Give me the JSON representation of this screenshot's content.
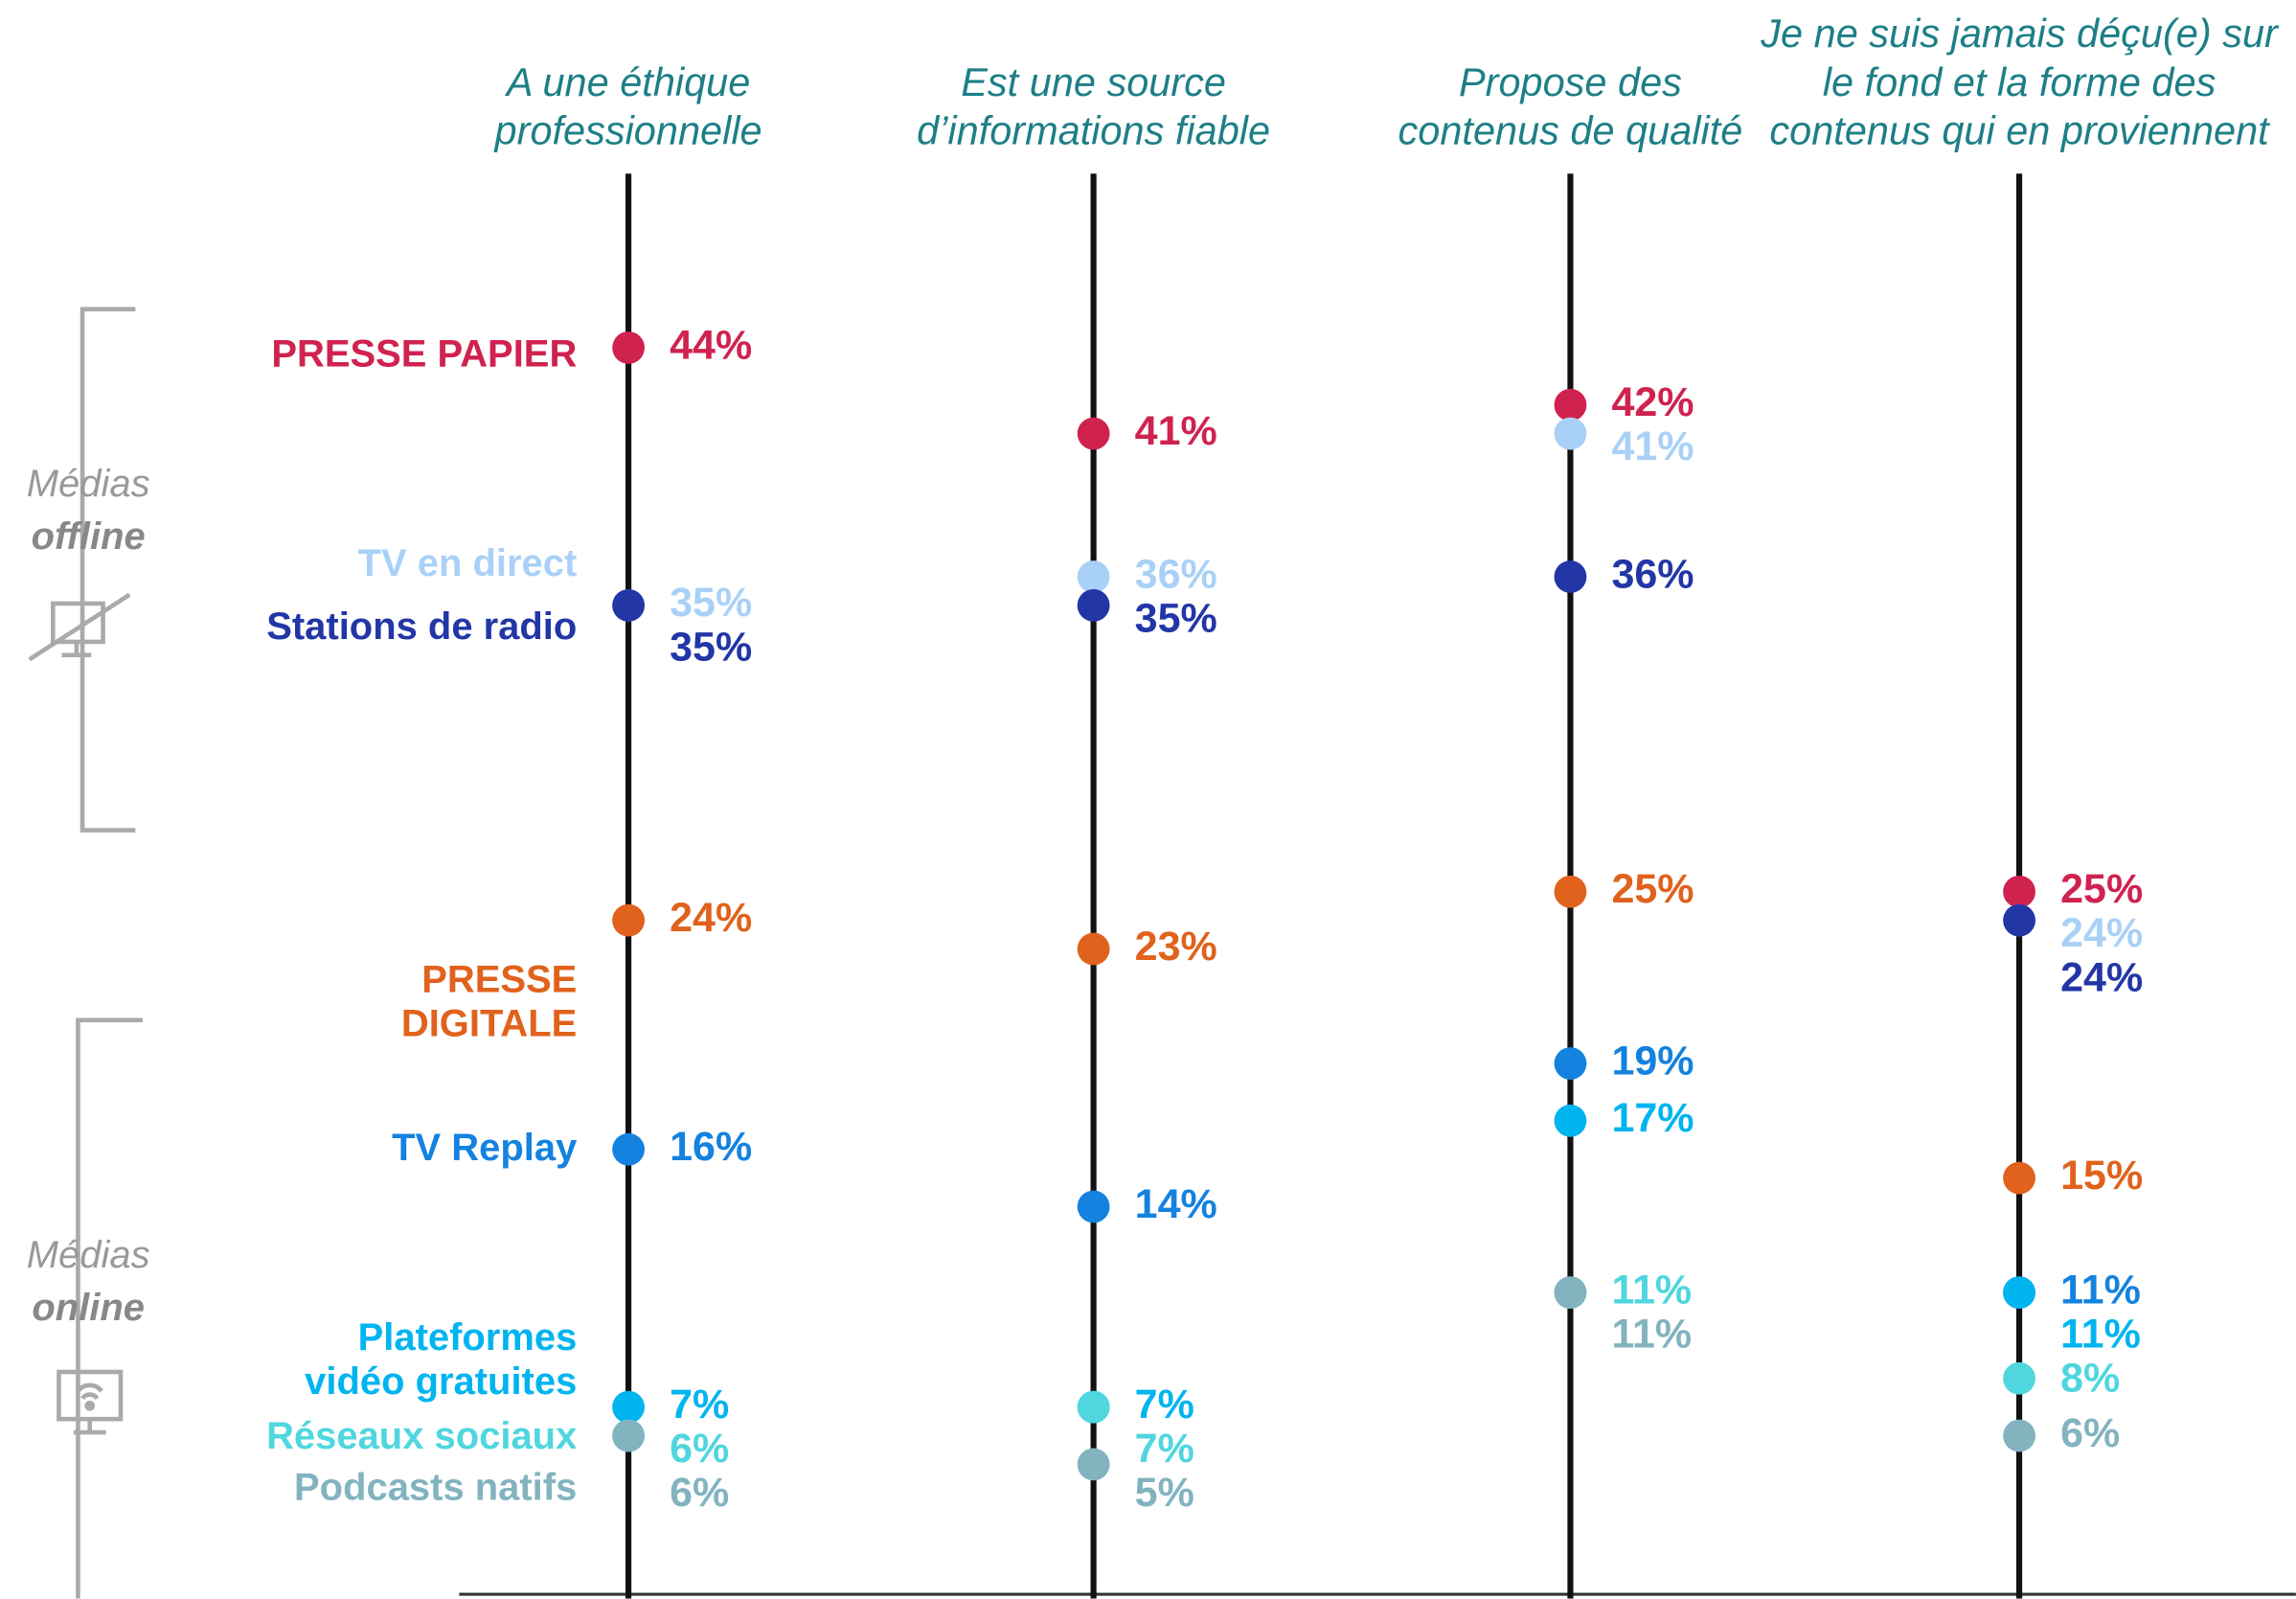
{
  "chart_data": {
    "type": "dot",
    "categories": [
      "A une éthique\nprofessionnelle",
      "Est une source\nd’informations fiable",
      "Propose des\ncontenus de qualité",
      "Je ne suis jamais déçu(e) sur\nle fond et la forme des\ncontenus qui en proviennent"
    ],
    "series": [
      {
        "name": "PRESSE PAPIER",
        "color": "#d0224f",
        "values": [
          44,
          41,
          42,
          25
        ],
        "value_labels": [
          "44%",
          "41%",
          "42%",
          "25%"
        ]
      },
      {
        "name": "TV en direct",
        "color": "#a9d1f7",
        "values": [
          35,
          36,
          41,
          24
        ],
        "value_labels": [
          "35%",
          "36%",
          "41%",
          "24%"
        ]
      },
      {
        "name": "Stations de radio",
        "color": "#2236a6",
        "values": [
          35,
          35,
          36,
          24
        ],
        "value_labels": [
          "35%",
          "35%",
          "36%",
          "24%"
        ]
      },
      {
        "name": "PRESSE\nDIGITALE",
        "color": "#e0621c",
        "values": [
          24,
          23,
          25,
          15
        ],
        "value_labels": [
          "24%",
          "23%",
          "25%",
          "15%"
        ]
      },
      {
        "name": "TV Replay",
        "color": "#1482df",
        "values": [
          16,
          14,
          19,
          11
        ],
        "value_labels": [
          "16%",
          "14%",
          "19%",
          "11%"
        ]
      },
      {
        "name": "Plateformes\nvidéo gratuites",
        "color": "#00b4f0",
        "values": [
          7,
          7,
          17,
          11
        ],
        "value_labels": [
          "7%",
          "7%",
          "17%",
          "11%"
        ]
      },
      {
        "name": "Réseaux sociaux",
        "color": "#4fd6df",
        "values": [
          6,
          7,
          11,
          8
        ],
        "value_labels": [
          "6%",
          "7%",
          "11%",
          "8%"
        ]
      },
      {
        "name": "Podcasts natifs",
        "color": "#82b3bf",
        "values": [
          6,
          5,
          11,
          6
        ],
        "value_labels": [
          "6%",
          "5%",
          "11%",
          "6%"
        ]
      }
    ],
    "group_labels": [
      [
        "Médias",
        "offline"
      ],
      [
        "Médias",
        "online"
      ]
    ]
  }
}
